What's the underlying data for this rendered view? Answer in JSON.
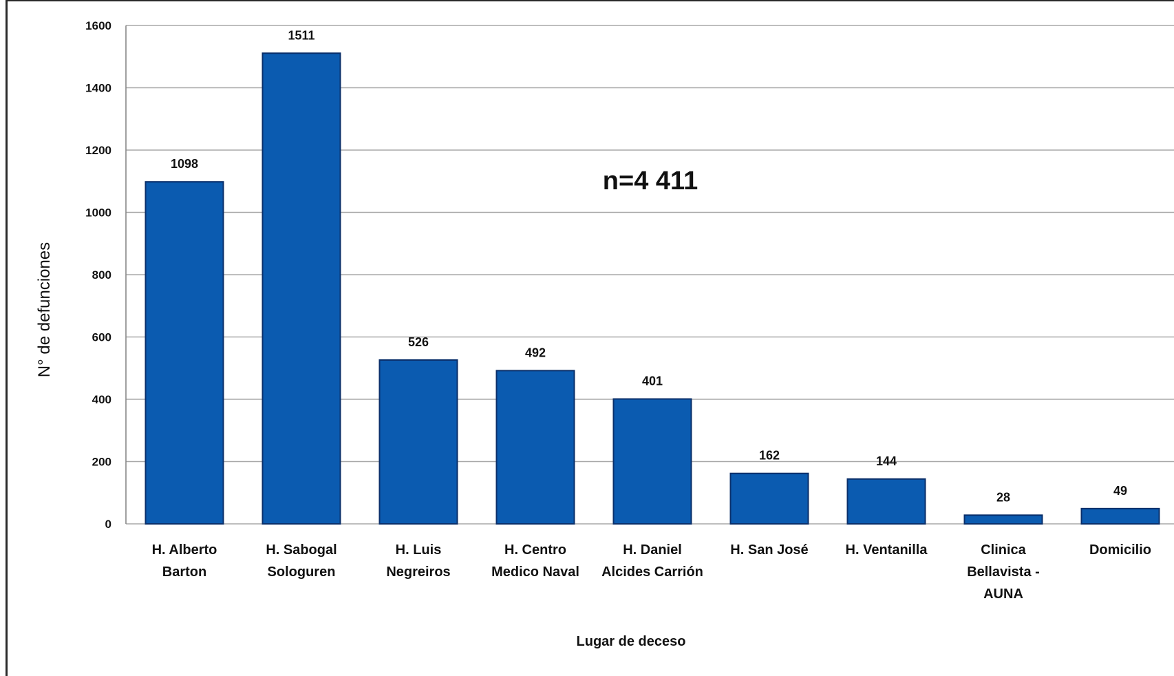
{
  "chart_data": {
    "type": "bar",
    "categories": [
      [
        "H. Alberto",
        "Barton"
      ],
      [
        "H. Sabogal",
        "Sologuren"
      ],
      [
        "H. Luis",
        "Negreiros"
      ],
      [
        "H. Centro",
        "Medico Naval"
      ],
      [
        "H. Daniel",
        "Alcides Carrión"
      ],
      [
        "H. San José"
      ],
      [
        "H. Ventanilla"
      ],
      [
        "Clinica",
        "Bellavista -",
        "AUNA"
      ],
      [
        "Domicilio"
      ]
    ],
    "values": [
      1098,
      1511,
      526,
      492,
      401,
      162,
      144,
      28,
      49
    ],
    "data_labels": [
      "1098",
      "1511",
      "526",
      "492",
      "401",
      "162",
      "144",
      "28",
      "49"
    ],
    "xlabel": "Lugar de deceso",
    "ylabel": "N° de defunciones",
    "ylim": [
      0,
      1600
    ],
    "yticks": [
      0,
      200,
      400,
      600,
      800,
      1000,
      1200,
      1400,
      1600
    ],
    "annotation": "n=4 411",
    "grid": true,
    "legend": "none",
    "bar_color": "#0b5bb0",
    "bar_edge_color": "#0a2f6a"
  }
}
